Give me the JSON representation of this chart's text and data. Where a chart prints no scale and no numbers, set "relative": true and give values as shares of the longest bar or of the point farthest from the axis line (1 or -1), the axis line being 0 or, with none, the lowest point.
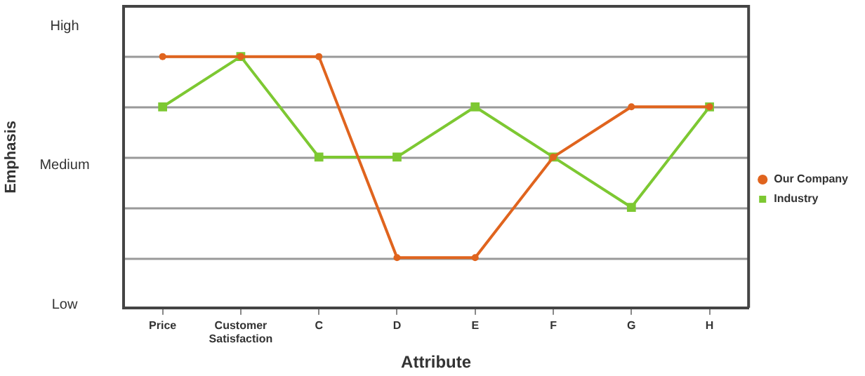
{
  "chart_data": {
    "type": "line",
    "xlabel": "Attribute",
    "relative": true,
    "categories": [
      "Price",
      "Customer Satisfaction",
      "C",
      "D",
      "E",
      "F",
      "G",
      "H"
    ],
    "series": [
      {
        "name": "Our Company",
        "color": "#e0641e",
        "marker": "circle",
        "values": [
          1,
          1,
          1,
          0.2,
          0.2,
          0.6,
          0.8,
          0.8
        ]
      },
      {
        "name": "Industry",
        "color": "#7dc832",
        "marker": "square",
        "values": [
          0.8,
          1,
          0.6,
          0.6,
          0.8,
          0.6,
          0.4,
          0.8
        ]
      }
    ],
    "annotations": [
      "Emphasis",
      "High",
      "Medium",
      "Low"
    ],
    "grid": "y",
    "legend": "right"
  }
}
